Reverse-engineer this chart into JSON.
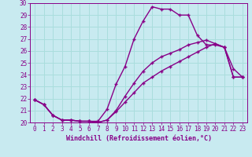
{
  "xlabel": "Windchill (Refroidissement éolien,°C)",
  "bg_color": "#c8eaf0",
  "line_color": "#880088",
  "grid_color": "#aadddd",
  "xlim": [
    -0.5,
    23.5
  ],
  "ylim": [
    20,
    30
  ],
  "yticks": [
    20,
    21,
    22,
    23,
    24,
    25,
    26,
    27,
    28,
    29,
    30
  ],
  "xticks": [
    0,
    1,
    2,
    3,
    4,
    5,
    6,
    7,
    8,
    9,
    10,
    11,
    12,
    13,
    14,
    15,
    16,
    17,
    18,
    19,
    20,
    21,
    22,
    23
  ],
  "series1_x": [
    0,
    1,
    2,
    3,
    4,
    5,
    6,
    7,
    8,
    9,
    10,
    11,
    12,
    13,
    14,
    15,
    16,
    17,
    18,
    19,
    20,
    21,
    22,
    23
  ],
  "series1_y": [
    21.9,
    21.5,
    20.6,
    20.2,
    20.2,
    20.1,
    20.1,
    20.1,
    21.1,
    23.2,
    24.7,
    27.0,
    28.5,
    29.7,
    29.5,
    29.5,
    29.0,
    29.0,
    27.3,
    26.5,
    26.5,
    26.3,
    24.5,
    23.8
  ],
  "series2_x": [
    0,
    1,
    2,
    3,
    4,
    5,
    6,
    7,
    8,
    9,
    10,
    11,
    12,
    13,
    14,
    15,
    16,
    17,
    18,
    19,
    20,
    21,
    22,
    23
  ],
  "series2_y": [
    21.9,
    21.5,
    20.6,
    20.2,
    20.2,
    20.1,
    20.1,
    20.0,
    20.2,
    21.0,
    22.2,
    23.3,
    24.3,
    25.0,
    25.5,
    25.8,
    26.1,
    26.5,
    26.7,
    26.9,
    26.6,
    26.3,
    23.8,
    23.8
  ],
  "series3_x": [
    0,
    1,
    2,
    3,
    4,
    5,
    6,
    7,
    8,
    9,
    10,
    11,
    12,
    13,
    14,
    15,
    16,
    17,
    18,
    19,
    20,
    21,
    22,
    23
  ],
  "series3_y": [
    21.9,
    21.5,
    20.6,
    20.2,
    20.2,
    20.1,
    20.1,
    20.0,
    20.2,
    20.9,
    21.7,
    22.5,
    23.3,
    23.8,
    24.3,
    24.7,
    25.1,
    25.5,
    25.9,
    26.3,
    26.6,
    26.3,
    23.8,
    23.8
  ],
  "xlabel_fontsize": 6.0,
  "tick_fontsize": 5.5
}
